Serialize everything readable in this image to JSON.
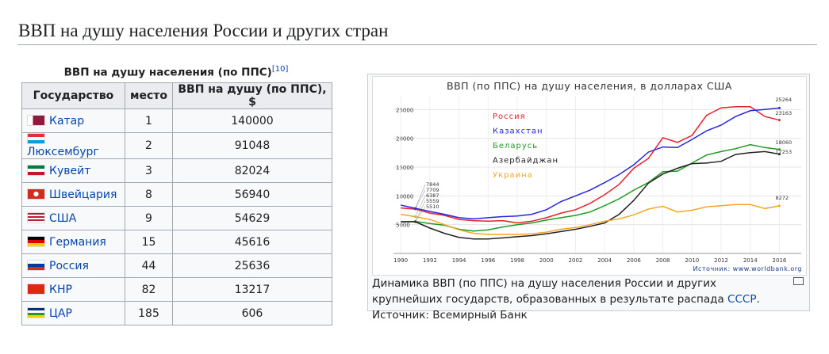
{
  "heading": "ВВП на душу населения России и других стран",
  "table": {
    "caption": "ВВП на душу населения (по ППС)",
    "caption_ref": "[10]",
    "columns": [
      "Государство",
      "место",
      "ВВП на душу (по ППС), $"
    ],
    "rows": [
      [
        "Катар",
        1,
        140000
      ],
      [
        "Люксембург",
        2,
        91048
      ],
      [
        "Кувейт",
        3,
        82024
      ],
      [
        "Швейцария",
        8,
        56940
      ],
      [
        "США",
        9,
        54629
      ],
      [
        "Германия",
        15,
        45616
      ],
      [
        "Россия",
        44,
        25636
      ],
      [
        "КНР",
        82,
        13217
      ],
      [
        "ЦАР",
        185,
        606
      ]
    ]
  },
  "figure": {
    "caption_parts": [
      "Динамика ВВП (по ППС) на душу населения России и других крупнейших государств, образованных в результате распада ",
      "СССР",
      ". Источник: Всемирный Банк"
    ]
  },
  "chart_data": {
    "type": "line",
    "title": "ВВП (по ППС) на душу населения, в долларах США",
    "source": "Источник: www.worldbank.org",
    "x": [
      1990,
      1991,
      1992,
      1993,
      1994,
      1995,
      1996,
      1997,
      1998,
      1999,
      2000,
      2001,
      2002,
      2003,
      2004,
      2005,
      2006,
      2007,
      2008,
      2009,
      2010,
      2011,
      2012,
      2013,
      2014,
      2015,
      2016
    ],
    "xlim": [
      1989.5,
      2017.5
    ],
    "xticks": [
      1990,
      1992,
      1994,
      1996,
      1998,
      2000,
      2002,
      2004,
      2006,
      2008,
      2010,
      2012,
      2014,
      2016
    ],
    "ylim": [
      0,
      30000
    ],
    "yticks": [
      5000,
      10000,
      15000,
      20000,
      25000
    ],
    "grid": true,
    "series": [
      {
        "name": "Россия",
        "color": "#e8202a",
        "values": [
          7900,
          7709,
          7000,
          6600,
          5900,
          5700,
          5600,
          5700,
          5300,
          5600,
          6200,
          7000,
          7600,
          8700,
          10200,
          12000,
          14800,
          16500,
          20100,
          19300,
          20500,
          24000,
          25300,
          25500,
          25500,
          23800,
          23163
        ]
      },
      {
        "name": "Казахстан",
        "color": "#2626e0",
        "values": [
          8400,
          7844,
          7300,
          6800,
          6200,
          6000,
          6200,
          6400,
          6500,
          6800,
          7600,
          9000,
          10000,
          11000,
          12300,
          13700,
          15400,
          17600,
          18500,
          18400,
          19800,
          21300,
          22300,
          23800,
          24800,
          25000,
          25264
        ]
      },
      {
        "name": "Беларусь",
        "color": "#1f9a1f",
        "values": [
          5500,
          5559,
          5200,
          4900,
          4200,
          3900,
          4100,
          4600,
          5000,
          5300,
          5800,
          6200,
          6600,
          7200,
          8300,
          9500,
          11000,
          12300,
          14200,
          14300,
          15700,
          17100,
          17700,
          18200,
          18900,
          18400,
          18060
        ]
      },
      {
        "name": "Азербайджан",
        "color": "#222222",
        "values": [
          5500,
          5510,
          4400,
          3500,
          2800,
          2500,
          2500,
          2700,
          2900,
          3100,
          3400,
          3800,
          4200,
          4700,
          5300,
          6800,
          9200,
          12200,
          13800,
          14800,
          15600,
          15700,
          16000,
          17200,
          17500,
          17700,
          17253
        ]
      },
      {
        "name": "Украина",
        "color": "#f5a623",
        "values": [
          6800,
          6387,
          5900,
          5000,
          4100,
          3500,
          3300,
          3300,
          3300,
          3400,
          3700,
          4200,
          4500,
          5000,
          5600,
          6000,
          6700,
          7700,
          8200,
          7200,
          7500,
          8100,
          8300,
          8500,
          8500,
          7800,
          8272
        ]
      }
    ]
  }
}
